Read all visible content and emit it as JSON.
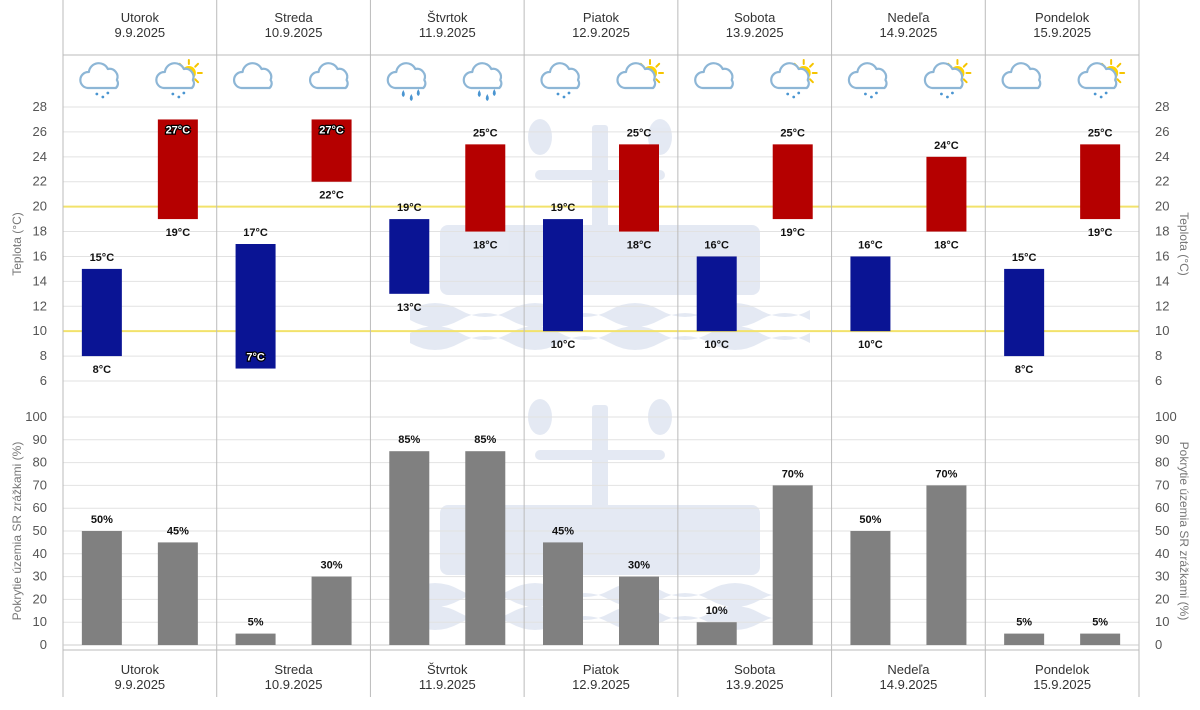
{
  "colors": {
    "min_bar": "#0a1494",
    "max_bar": "#b50000",
    "precip_bar": "#808080",
    "threshold_line": "#f2e26b",
    "grid": "#e2e2e2",
    "separator": "#bbbbbb"
  },
  "days": [
    {
      "name": "Utorok",
      "date": "9.9.2025",
      "icons": [
        "cloudy-night-light-rain-icon",
        "partly-sunny-light-rain-icon"
      ]
    },
    {
      "name": "Streda",
      "date": "10.9.2025",
      "icons": [
        "cloudy-night-icon",
        "cloud-icon"
      ]
    },
    {
      "name": "Štvrtok",
      "date": "11.9.2025",
      "icons": [
        "cloud-rain-icon",
        "cloud-rain-icon"
      ]
    },
    {
      "name": "Piatok",
      "date": "12.9.2025",
      "icons": [
        "cloudy-night-light-rain-icon",
        "sun-behind-cloud-icon"
      ]
    },
    {
      "name": "Sobota",
      "date": "13.9.2025",
      "icons": [
        "cloudy-night-icon",
        "partly-sunny-light-rain-icon"
      ]
    },
    {
      "name": "Nedeľa",
      "date": "14.9.2025",
      "icons": [
        "cloudy-night-light-rain-icon",
        "partly-sunny-light-rain-icon"
      ]
    },
    {
      "name": "Pondelok",
      "date": "15.9.2025",
      "icons": [
        "cloudy-night-icon",
        "partly-sunny-light-rain-icon"
      ]
    }
  ],
  "chart_data": [
    {
      "type": "bar",
      "subtype": "floating-range",
      "ylabel": "Teplota (°C)",
      "ylim": [
        6,
        28
      ],
      "yticks": [
        6,
        8,
        10,
        12,
        14,
        16,
        18,
        20,
        22,
        24,
        26,
        28
      ],
      "threshold_lines": [
        10,
        20
      ],
      "grid": true,
      "unit": "°C",
      "night": [
        {
          "low": 8,
          "high": 15
        },
        {
          "low": 7,
          "high": 17
        },
        {
          "low": 13,
          "high": 19
        },
        {
          "low": 10,
          "high": 19
        },
        {
          "low": 10,
          "high": 16
        },
        {
          "low": 10,
          "high": 16
        },
        {
          "low": 8,
          "high": 15
        }
      ],
      "day": [
        {
          "low": 19,
          "high": 27
        },
        {
          "low": 22,
          "high": 27
        },
        {
          "low": 18,
          "high": 25
        },
        {
          "low": 18,
          "high": 25
        },
        {
          "low": 19,
          "high": 25
        },
        {
          "low": 18,
          "high": 24
        },
        {
          "low": 19,
          "high": 25
        }
      ]
    },
    {
      "type": "bar",
      "ylabel": "Pokrytie územia SR zrážkami (%)",
      "ylim": [
        0,
        100
      ],
      "yticks": [
        0,
        10,
        20,
        30,
        40,
        50,
        60,
        70,
        80,
        90,
        100
      ],
      "grid": true,
      "unit": "%",
      "night": [
        50,
        5,
        85,
        45,
        10,
        50,
        5
      ],
      "day": [
        45,
        30,
        85,
        30,
        70,
        70,
        5
      ]
    }
  ]
}
